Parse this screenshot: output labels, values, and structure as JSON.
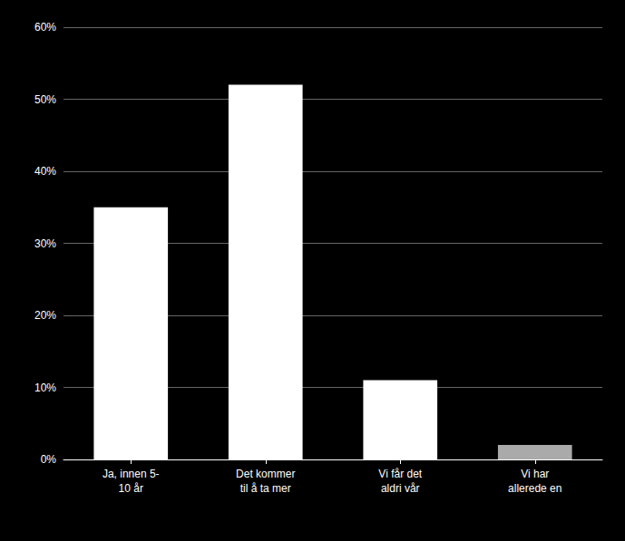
{
  "chart_data": {
    "type": "bar",
    "categories": [
      "Ja, innen 5-\n10 år",
      "Det kommer\ntil å ta mer",
      "Vi får det\naldri vår",
      "Vi har\nallerede en"
    ],
    "values": [
      35,
      52,
      11,
      2
    ],
    "colors": [
      "#ffffff",
      "#ffffff",
      "#ffffff",
      "#aaaaaa"
    ],
    "ylim": [
      0,
      60
    ],
    "yticks": [
      {
        "value": 0,
        "label": "0%"
      },
      {
        "value": 10,
        "label": "10%"
      },
      {
        "value": 20,
        "label": "20%"
      },
      {
        "value": 30,
        "label": "30%"
      },
      {
        "value": 40,
        "label": "40%"
      },
      {
        "value": 50,
        "label": "50%"
      },
      {
        "value": 60,
        "label": "60%"
      }
    ],
    "grid": true
  }
}
